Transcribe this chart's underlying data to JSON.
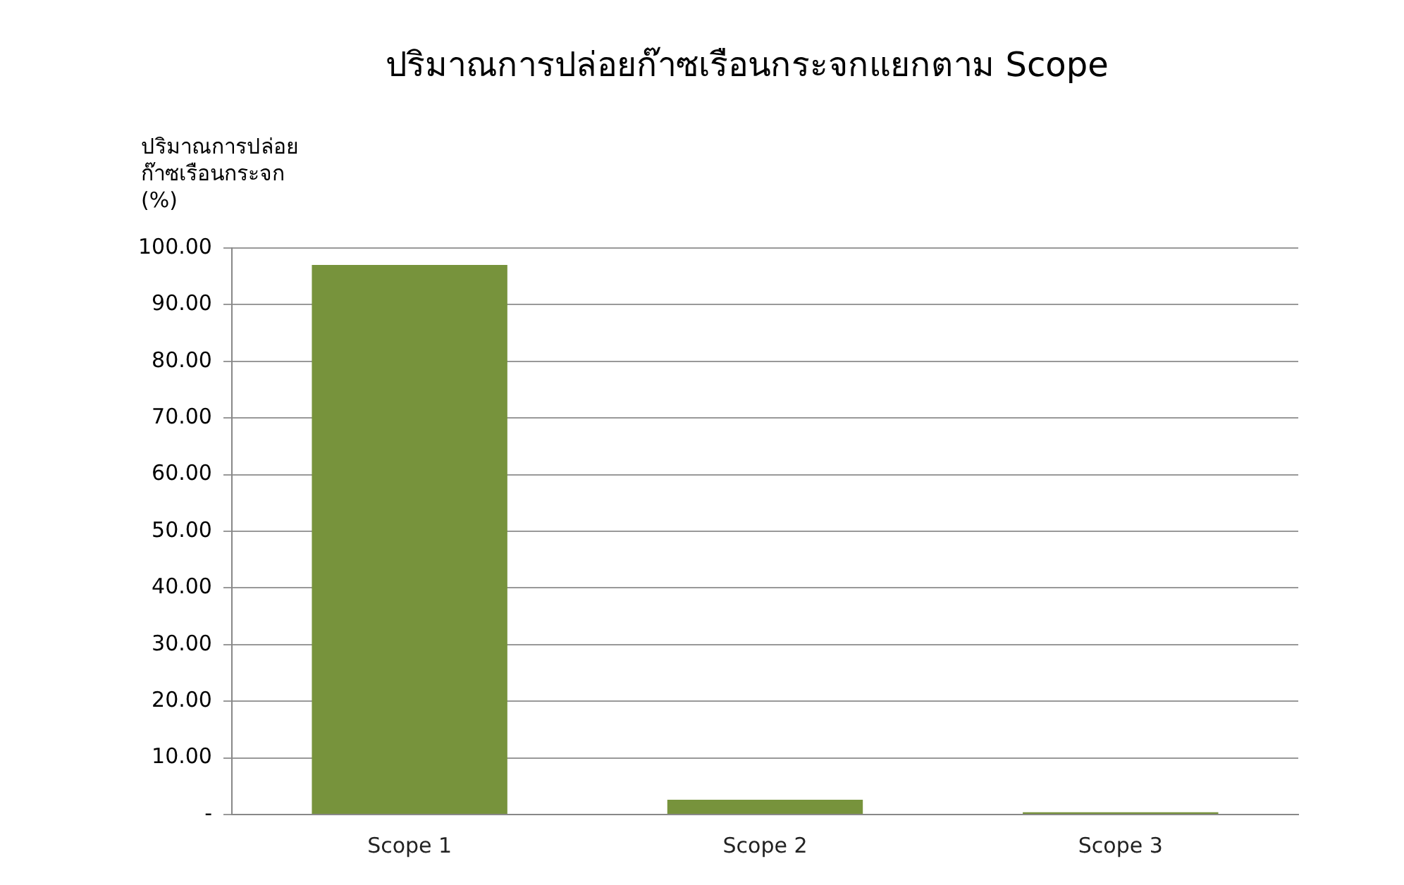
{
  "chart_data": {
    "type": "bar",
    "title": "ปริมาณการปล่อยก๊าซเรือนกระจกแยกตาม Scope",
    "ylabel": "ปริมาณการปล่อย\nก๊าซเรือนกระจก\n(%)",
    "categories": [
      "Scope 1",
      "Scope 2",
      "Scope 3"
    ],
    "values": [
      97.0,
      2.6,
      0.4
    ],
    "color": "#77933c",
    "ylim": [
      0,
      100
    ],
    "yticks": [
      {
        "value": 0,
        "label": "-"
      },
      {
        "value": 10,
        "label": "10.00"
      },
      {
        "value": 20,
        "label": "20.00"
      },
      {
        "value": 30,
        "label": "30.00"
      },
      {
        "value": 40,
        "label": "40.00"
      },
      {
        "value": 50,
        "label": "50.00"
      },
      {
        "value": 60,
        "label": "60.00"
      },
      {
        "value": 70,
        "label": "70.00"
      },
      {
        "value": 80,
        "label": "80.00"
      },
      {
        "value": 90,
        "label": "90.00"
      },
      {
        "value": 100,
        "label": "100.00"
      }
    ],
    "grid": "y",
    "legend": false
  }
}
